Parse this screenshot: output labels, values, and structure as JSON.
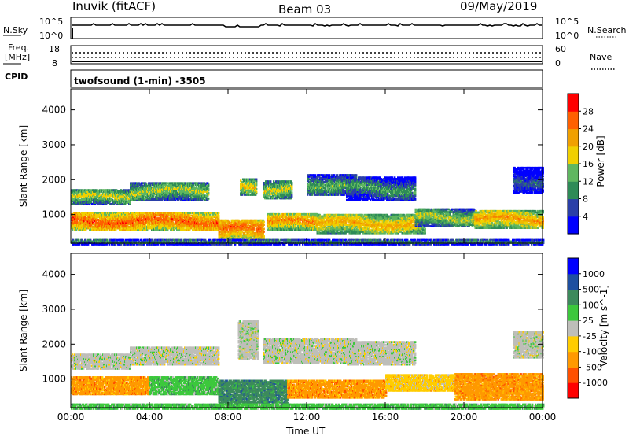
{
  "header": {
    "station": "Inuvik (fitACF)",
    "beam": "Beam 03",
    "date": "09/May/2019"
  },
  "top_panels": {
    "nsky_label": "N.Sky",
    "nsearch_label": "N.Search",
    "left_ticks_nsky": [
      "10^5",
      "10^0"
    ],
    "right_ticks_nsky": [
      "10^5",
      "10^0"
    ],
    "freq_label_1": "Freq.",
    "freq_label_2": "[MHz]",
    "freq_ticks": [
      "18",
      "8"
    ],
    "nave_label": "Nave",
    "nave_ticks": [
      "60",
      "0"
    ],
    "cpid_label": "CPID",
    "cpid_text": "twofsound (1-min) -3505"
  },
  "colors": {
    "power": [
      "#0000ff",
      "#2a3fa8",
      "#2e8b57",
      "#5fb760",
      "#f0d000",
      "#f0a000",
      "#ff6000",
      "#ff0000"
    ],
    "velocity": [
      "#ff0000",
      "#ff5000",
      "#ff9900",
      "#ffcc00",
      "#bebeb9",
      "#3cc83c",
      "#3c8a5c",
      "#1e4fa0",
      "#0000ff"
    ]
  },
  "chart_data": [
    {
      "type": "heatmap",
      "name": "Power",
      "xlabel": "",
      "ylabel": "Slant Range [km]",
      "x_range_hours": [
        0,
        24
      ],
      "ylim": [
        180,
        4600
      ],
      "yticks": [
        1000,
        2000,
        3000,
        4000
      ],
      "xticks": [
        "00:00",
        "04:00",
        "08:00",
        "12:00",
        "16:00",
        "20:00",
        "00:00"
      ],
      "colorbar": {
        "label": "Power [dB]",
        "ticks": [
          "4",
          "8",
          "12",
          "16",
          "20",
          "24",
          "28"
        ],
        "range": [
          0,
          32
        ]
      },
      "bands": [
        {
          "t0": 0.0,
          "t1": 3.0,
          "r0": 1330,
          "r1": 1750,
          "value": 18
        },
        {
          "t0": 3.0,
          "t1": 7.0,
          "r0": 1450,
          "r1": 1950,
          "value": 17
        },
        {
          "t0": 0.0,
          "t1": 7.5,
          "r0": 600,
          "r1": 1100,
          "value": 27
        },
        {
          "t0": 7.5,
          "t1": 9.8,
          "r0": 300,
          "r1": 900,
          "value": 26
        },
        {
          "t0": 8.6,
          "t1": 9.4,
          "r0": 1600,
          "r1": 2050,
          "value": 20
        },
        {
          "t0": 9.8,
          "t1": 11.2,
          "r0": 1500,
          "r1": 2000,
          "value": 18
        },
        {
          "t0": 10.0,
          "t1": 12.5,
          "r0": 600,
          "r1": 1050,
          "value": 24
        },
        {
          "t0": 12.0,
          "t1": 14.5,
          "r0": 1600,
          "r1": 2200,
          "value": 14
        },
        {
          "t0": 14.0,
          "t1": 17.5,
          "r0": 1450,
          "r1": 2100,
          "value": 12
        },
        {
          "t0": 12.5,
          "t1": 18.0,
          "r0": 500,
          "r1": 1050,
          "value": 22
        },
        {
          "t0": 17.5,
          "t1": 20.5,
          "r0": 700,
          "r1": 1200,
          "value": 17
        },
        {
          "t0": 20.5,
          "t1": 24.0,
          "r0": 650,
          "r1": 1150,
          "value": 23
        },
        {
          "t0": 22.5,
          "t1": 24.0,
          "r0": 1650,
          "r1": 2400,
          "value": 8
        },
        {
          "t0": 0.0,
          "t1": 24.0,
          "r0": 180,
          "r1": 320,
          "value": 12
        }
      ]
    },
    {
      "type": "heatmap",
      "name": "Velocity",
      "xlabel": "Time UT",
      "ylabel": "Slant Range [km]",
      "x_range_hours": [
        0,
        24
      ],
      "ylim": [
        180,
        4600
      ],
      "yticks": [
        1000,
        2000,
        3000,
        4000
      ],
      "xticks": [
        "00:00",
        "04:00",
        "08:00",
        "12:00",
        "16:00",
        "20:00",
        "00:00"
      ],
      "colorbar": {
        "label": "Velocity [m s^-1]",
        "ticks": [
          "-1000",
          "-500",
          "-100",
          "-25",
          "25",
          "100",
          "500",
          "1000"
        ],
        "categories": 9
      },
      "bands": [
        {
          "t0": 0.0,
          "t1": 3.0,
          "r0": 1330,
          "r1": 1750,
          "value": 4
        },
        {
          "t0": 3.0,
          "t1": 7.5,
          "r0": 1450,
          "r1": 1950,
          "value": 4
        },
        {
          "t0": 0.0,
          "t1": 4.0,
          "r0": 600,
          "r1": 1100,
          "value": 2
        },
        {
          "t0": 4.0,
          "t1": 7.5,
          "r0": 600,
          "r1": 1100,
          "value": 5
        },
        {
          "t0": 7.5,
          "t1": 11.0,
          "r0": 300,
          "r1": 1000,
          "value": 6
        },
        {
          "t0": 8.5,
          "t1": 9.5,
          "r0": 1600,
          "r1": 2700,
          "value": 4
        },
        {
          "t0": 9.8,
          "t1": 14.5,
          "r0": 1500,
          "r1": 2200,
          "value": 4
        },
        {
          "t0": 11.0,
          "t1": 16.0,
          "r0": 500,
          "r1": 1000,
          "value": 2
        },
        {
          "t0": 14.0,
          "t1": 17.5,
          "r0": 1450,
          "r1": 2100,
          "value": 4
        },
        {
          "t0": 16.0,
          "t1": 19.5,
          "r0": 700,
          "r1": 1150,
          "value": 3
        },
        {
          "t0": 19.5,
          "t1": 24.0,
          "r0": 450,
          "r1": 1200,
          "value": 2
        },
        {
          "t0": 22.5,
          "t1": 24.0,
          "r0": 1650,
          "r1": 2400,
          "value": 4
        },
        {
          "t0": 0.0,
          "t1": 24.0,
          "r0": 180,
          "r1": 320,
          "value": 5
        }
      ]
    }
  ]
}
